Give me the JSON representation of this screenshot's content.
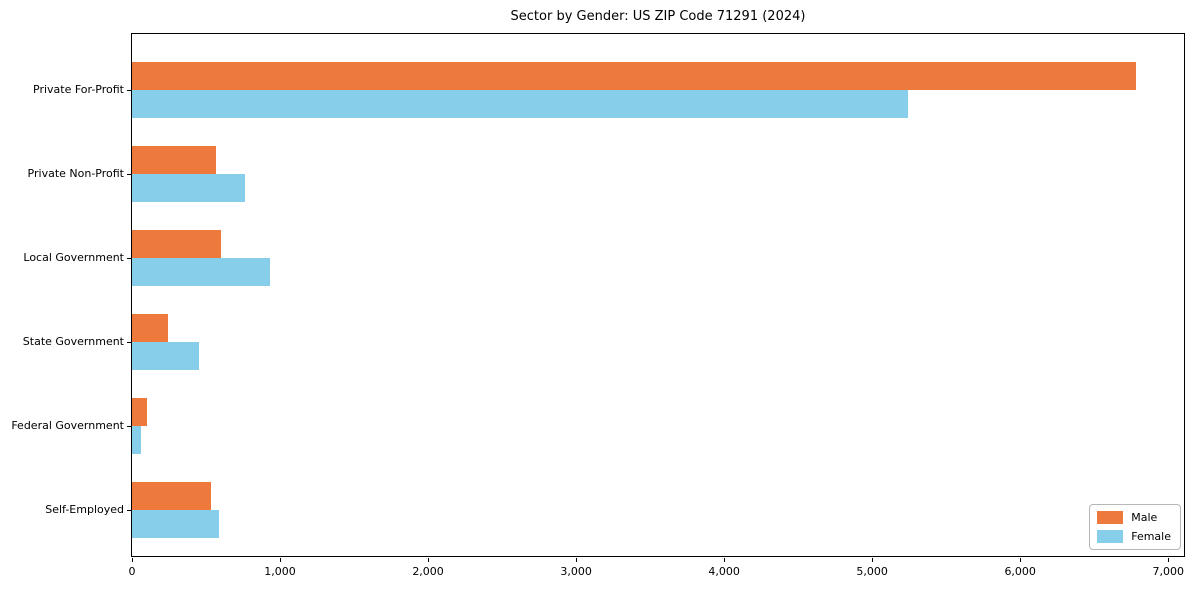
{
  "title": "Sector by Gender: US ZIP Code 71291 (2024)",
  "chart_data": {
    "type": "bar",
    "orientation": "horizontal",
    "title": "Sector by Gender: US ZIP Code 71291 (2024)",
    "categories": [
      "Private For-Profit",
      "Private Non-Profit",
      "Local Government",
      "State Government",
      "Federal Government",
      "Self-Employed"
    ],
    "series": [
      {
        "name": "Male",
        "color": "#ED7A3C",
        "values": [
          6780,
          570,
          600,
          240,
          100,
          530
        ]
      },
      {
        "name": "Female",
        "color": "#87CEEB",
        "values": [
          5240,
          760,
          930,
          450,
          60,
          590
        ]
      }
    ],
    "xlabel": "",
    "ylabel": "",
    "xlim": [
      0,
      7120
    ],
    "xticks": [
      0,
      1000,
      2000,
      3000,
      4000,
      5000,
      6000,
      7000
    ],
    "xtick_labels": [
      "0",
      "1,000",
      "2,000",
      "3,000",
      "4,000",
      "5,000",
      "6,000",
      "7,000"
    ],
    "grid": false,
    "legend": {
      "position": "lower right"
    }
  }
}
